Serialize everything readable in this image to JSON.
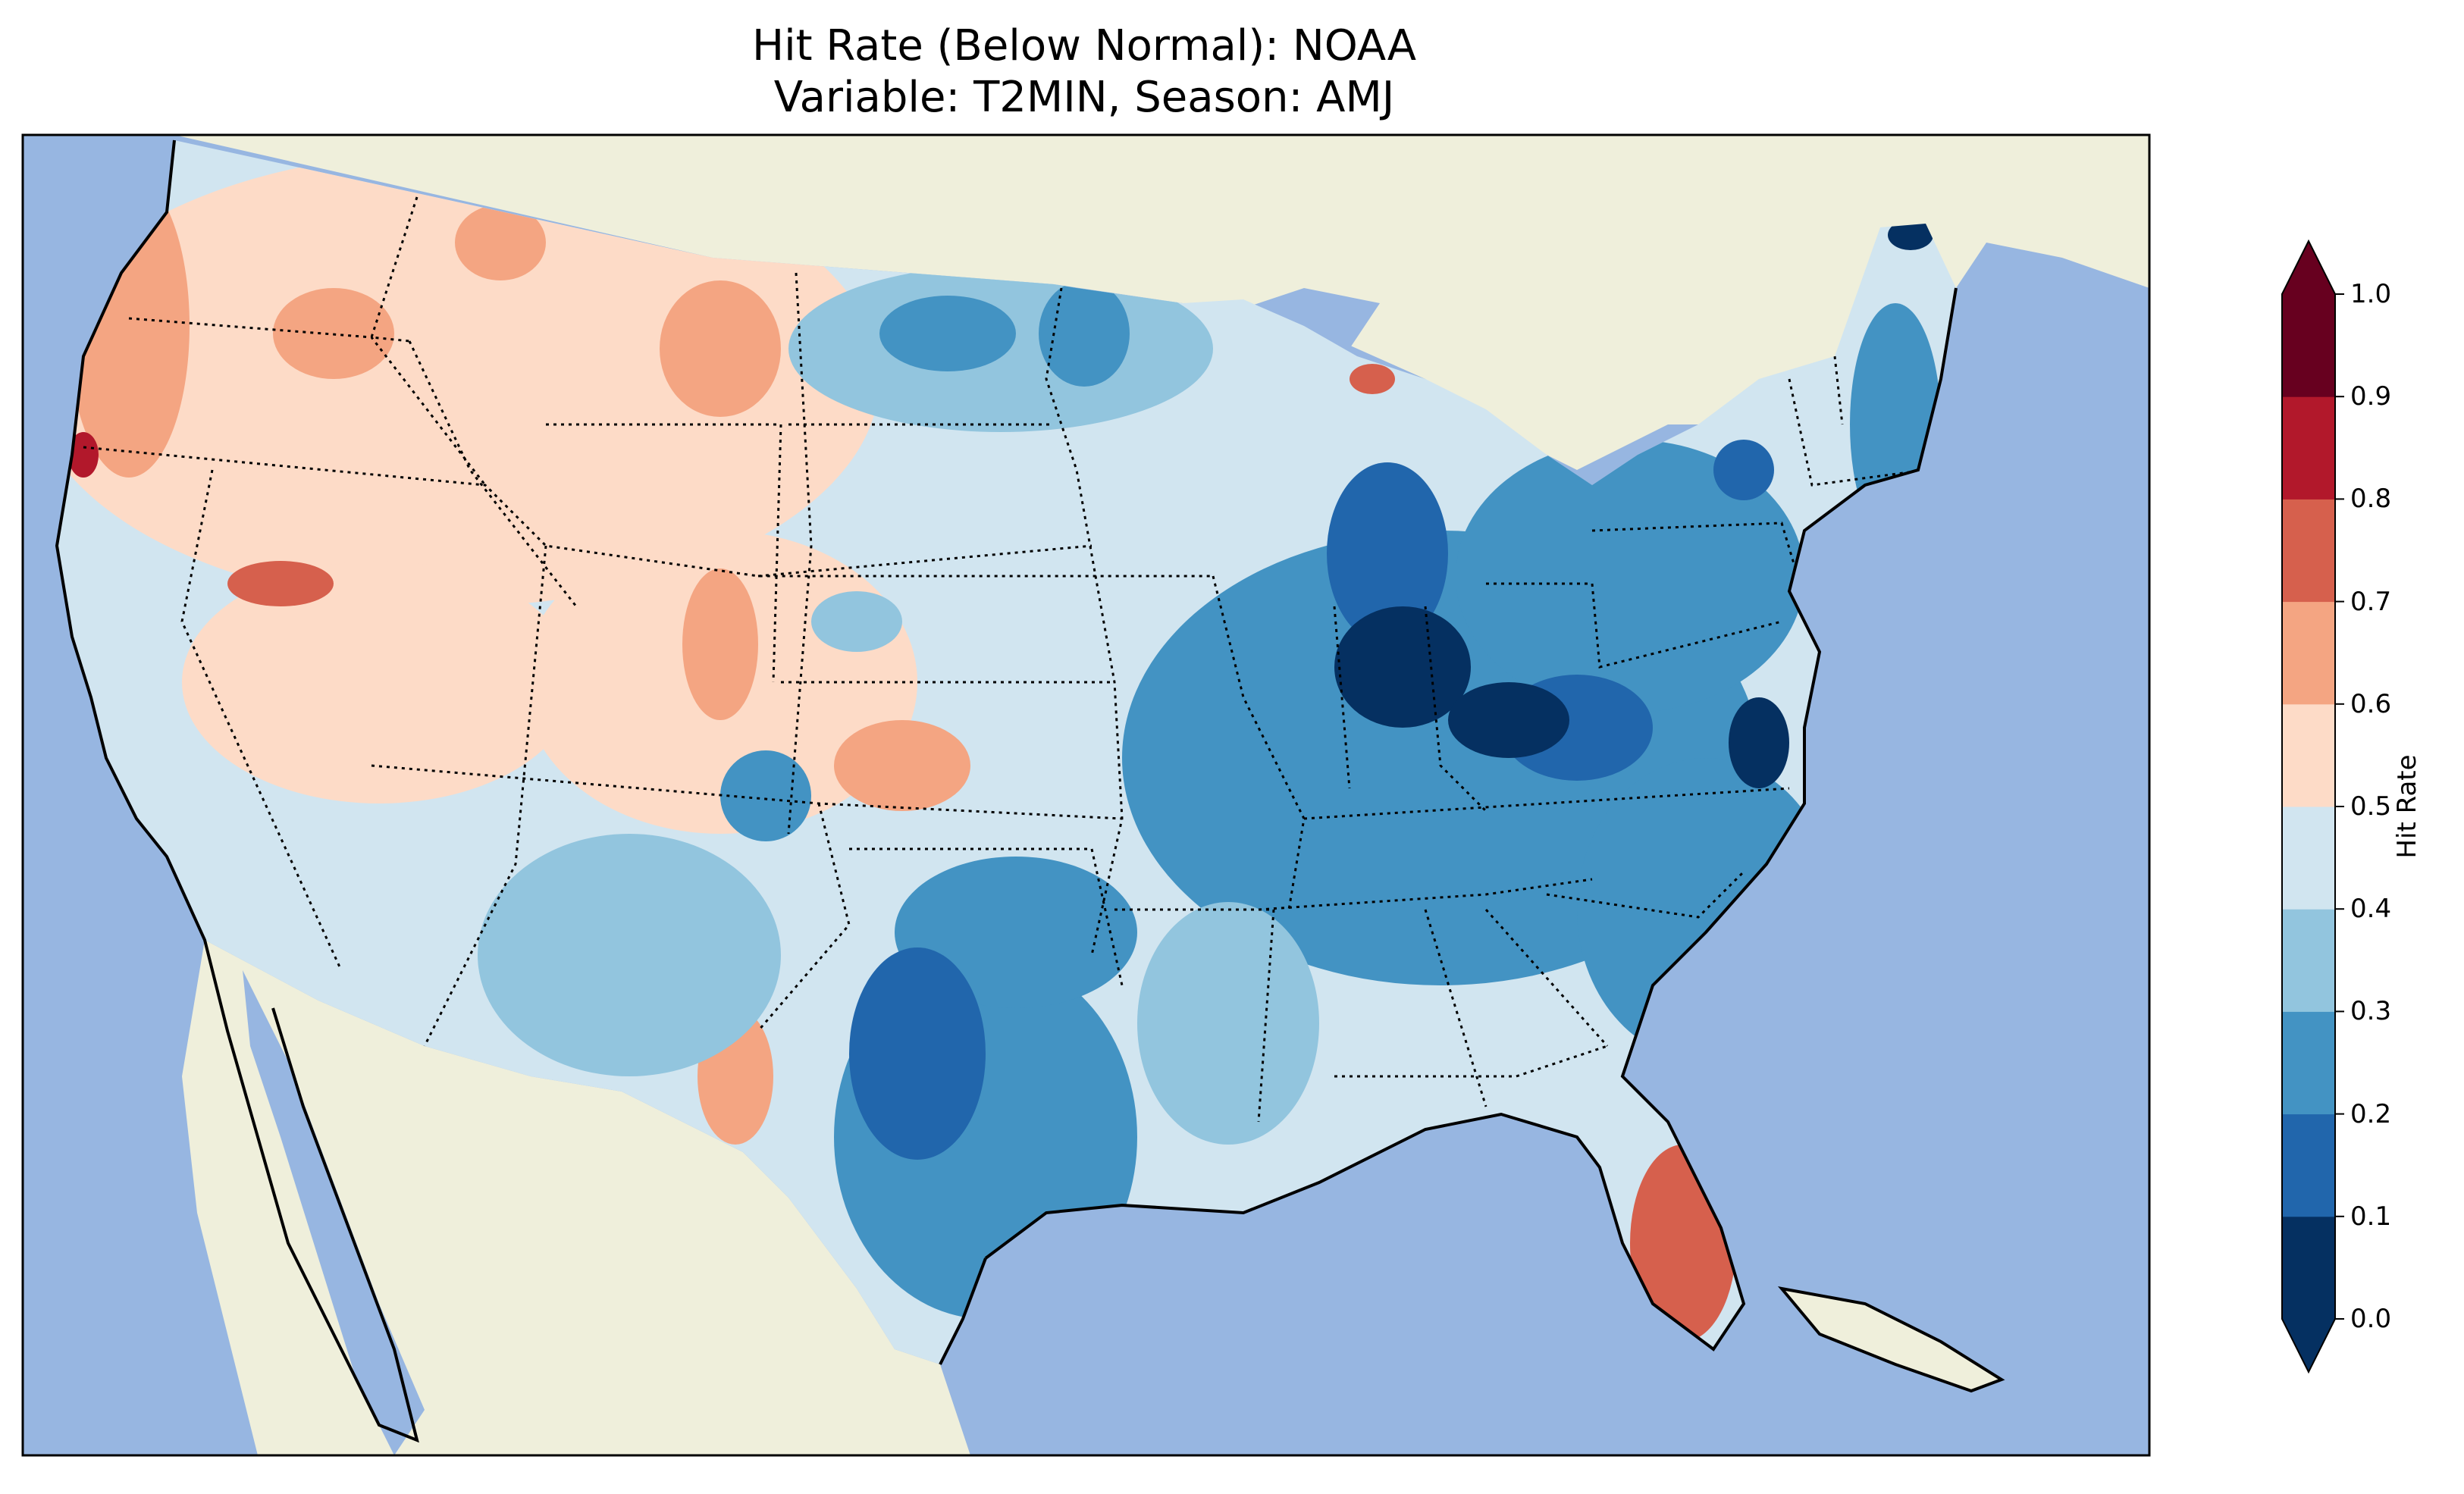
{
  "title": {
    "line1": "Hit Rate (Below Normal): NOAA",
    "line2": "Variable: T2MIN, Season: AMJ"
  },
  "colorbar": {
    "label": "Hit Rate",
    "ticks": [
      "0.0",
      "0.1",
      "0.2",
      "0.3",
      "0.4",
      "0.5",
      "0.6",
      "0.7",
      "0.8",
      "0.9",
      "1.0"
    ],
    "bins": [
      {
        "range": "0.0-0.1",
        "color": "#053061"
      },
      {
        "range": "0.1-0.2",
        "color": "#2166ac"
      },
      {
        "range": "0.2-0.3",
        "color": "#4393c3"
      },
      {
        "range": "0.3-0.4",
        "color": "#92c5de"
      },
      {
        "range": "0.4-0.5",
        "color": "#d1e5f0"
      },
      {
        "range": "0.5-0.6",
        "color": "#fddbc7"
      },
      {
        "range": "0.6-0.7",
        "color": "#f4a582"
      },
      {
        "range": "0.7-0.8",
        "color": "#d6604d"
      },
      {
        "range": "0.8-0.9",
        "color": "#b2182b"
      },
      {
        "range": "0.9-1.0",
        "color": "#67001f"
      }
    ],
    "extend_under_color": "#053061",
    "extend_over_color": "#67001f"
  },
  "map": {
    "ocean_color": "#97b6e1",
    "land_color": "#efefdb",
    "region": "Contiguous United States",
    "regional_values": [
      {
        "region": "Pacific Northwest",
        "bin": "0.6-0.7"
      },
      {
        "region": "Intermountain West",
        "bin": "0.5-0.6"
      },
      {
        "region": "Northern Plains",
        "bin": "0.3-0.4"
      },
      {
        "region": "Ohio Valley",
        "bin": "0.0-0.1"
      },
      {
        "region": "Southeast",
        "bin": "0.2-0.3"
      },
      {
        "region": "Texas",
        "bin": "0.2-0.3"
      },
      {
        "region": "Florida Peninsula",
        "bin": "0.7-0.8"
      }
    ]
  }
}
